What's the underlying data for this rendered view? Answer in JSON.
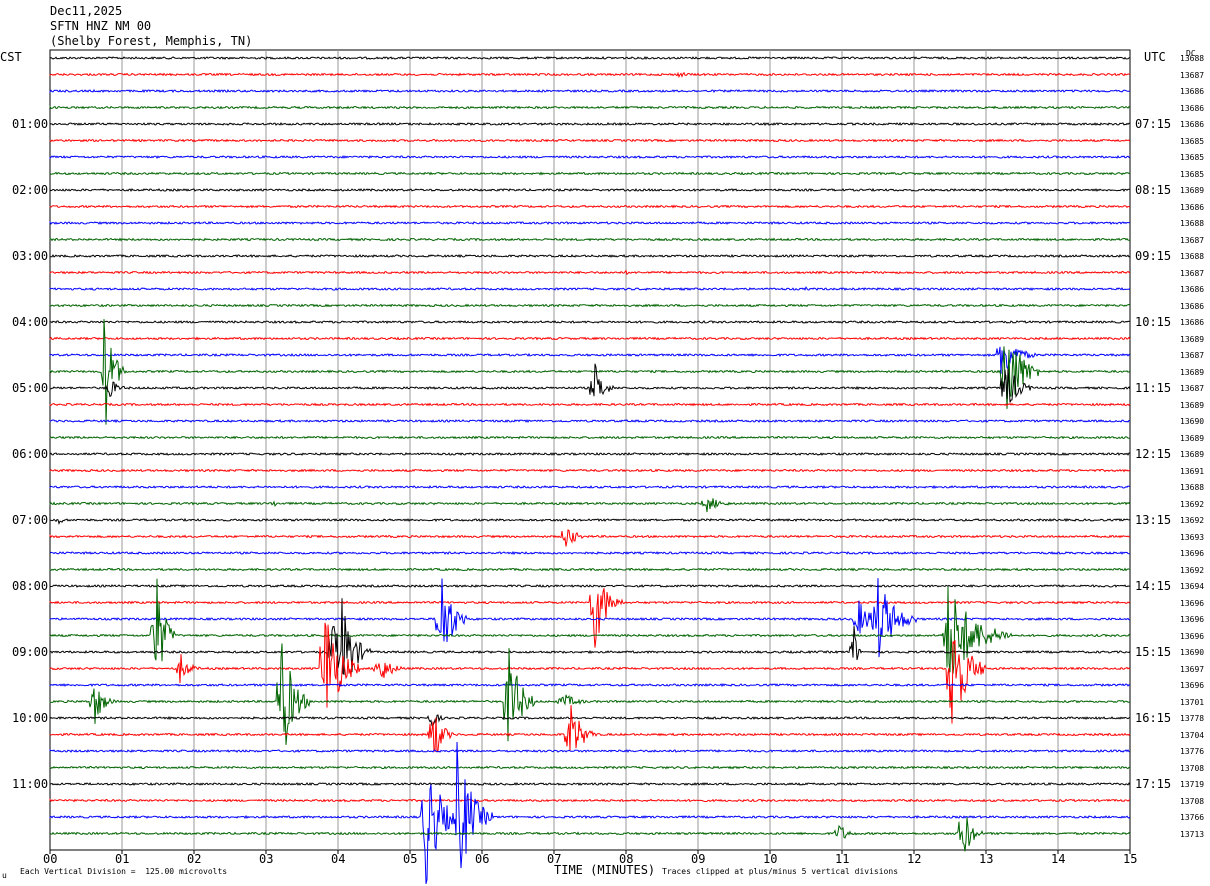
{
  "header": {
    "date": "Dec11,2025",
    "station": "SFTN HNZ NM 00",
    "location": "(Shelby Forest, Memphis, TN)"
  },
  "left_axis_title": "CST",
  "right_axis_title": "UTC",
  "dc_label": "DC",
  "left_times": [
    "01:00",
    "02:00",
    "03:00",
    "04:00",
    "05:00",
    "06:00",
    "07:00",
    "08:00",
    "09:00",
    "10:00",
    "11:00"
  ],
  "right_times": [
    "07:15",
    "08:15",
    "09:15",
    "10:15",
    "11:15",
    "12:15",
    "13:15",
    "14:15",
    "15:15",
    "16:15",
    "17:15"
  ],
  "dc_values": [
    "13688",
    "13687",
    "13686",
    "13686",
    "13686",
    "13685",
    "13685",
    "13685",
    "13689",
    "13686",
    "13688",
    "13687",
    "13688",
    "13687",
    "13686",
    "13686",
    "13686",
    "13689",
    "13687",
    "13689",
    "13687",
    "13689",
    "13690",
    "13689",
    "13689",
    "13691",
    "13688",
    "13692",
    "13692",
    "13693",
    "13696",
    "13692",
    "13694",
    "13696",
    "13696",
    "13696",
    "13690",
    "13697",
    "13696",
    "13701",
    "13778",
    "13704",
    "13776",
    "13708",
    "13719",
    "13708",
    "13766",
    "13713"
  ],
  "x_ticks": [
    "00",
    "01",
    "02",
    "03",
    "04",
    "05",
    "06",
    "07",
    "08",
    "09",
    "10",
    "11",
    "12",
    "13",
    "14",
    "15"
  ],
  "x_axis_title": "TIME (MINUTES)",
  "footer_left": "Each Vertical Division =  125.00 microvolts",
  "footer_right": "Traces clipped at plus/minus 5 vertical divisions",
  "footer_logo": "u",
  "trace_colors": [
    "#000000",
    "#ff0000",
    "#0000ff",
    "#006400"
  ],
  "events": [
    {
      "line": 1,
      "minute": 8.7,
      "amp": 3,
      "dur": 0.6
    },
    {
      "line": 13,
      "minute": 8.0,
      "amp": 2,
      "dur": 0.3
    },
    {
      "line": 14,
      "minute": 10.5,
      "amp": 2,
      "dur": 0.2
    },
    {
      "line": 19,
      "minute": 0.75,
      "amp": 70,
      "dur": 0.3
    },
    {
      "line": 20,
      "minute": 0.8,
      "amp": 14,
      "dur": 0.3
    },
    {
      "line": 18,
      "minute": 13.2,
      "amp": 30,
      "dur": 0.5
    },
    {
      "line": 19,
      "minute": 13.25,
      "amp": 70,
      "dur": 0.5
    },
    {
      "line": 20,
      "minute": 13.25,
      "amp": 35,
      "dur": 0.4
    },
    {
      "line": 20,
      "minute": 7.55,
      "amp": 30,
      "dur": 0.3
    },
    {
      "line": 27,
      "minute": 9.1,
      "amp": 10,
      "dur": 0.5
    },
    {
      "line": 27,
      "minute": 3.1,
      "amp": 6,
      "dur": 0.1
    },
    {
      "line": 28,
      "minute": 0.1,
      "amp": 6,
      "dur": 0.2
    },
    {
      "line": 29,
      "minute": 7.15,
      "amp": 18,
      "dur": 0.3
    },
    {
      "line": 33,
      "minute": 7.55,
      "amp": 55,
      "dur": 0.4
    },
    {
      "line": 34,
      "minute": 5.4,
      "amp": 70,
      "dur": 0.4
    },
    {
      "line": 34,
      "minute": 11.45,
      "amp": 55,
      "dur": 0.6
    },
    {
      "line": 34,
      "minute": 11.2,
      "amp": 25,
      "dur": 0.4
    },
    {
      "line": 35,
      "minute": 1.45,
      "amp": 80,
      "dur": 0.3
    },
    {
      "line": 35,
      "minute": 12.45,
      "amp": 60,
      "dur": 0.9
    },
    {
      "line": 36,
      "minute": 4.05,
      "amp": 60,
      "dur": 0.4
    },
    {
      "line": 36,
      "minute": 3.9,
      "amp": 45,
      "dur": 0.3
    },
    {
      "line": 36,
      "minute": 11.15,
      "amp": 50,
      "dur": 0.1
    },
    {
      "line": 37,
      "minute": 1.8,
      "amp": 18,
      "dur": 0.3
    },
    {
      "line": 37,
      "minute": 3.8,
      "amp": 80,
      "dur": 0.5
    },
    {
      "line": 37,
      "minute": 4.55,
      "amp": 20,
      "dur": 0.4
    },
    {
      "line": 37,
      "minute": 12.5,
      "amp": 80,
      "dur": 0.5
    },
    {
      "line": 39,
      "minute": 0.6,
      "amp": 30,
      "dur": 0.3
    },
    {
      "line": 39,
      "minute": 3.2,
      "amp": 80,
      "dur": 0.4
    },
    {
      "line": 39,
      "minute": 6.35,
      "amp": 70,
      "dur": 0.4
    },
    {
      "line": 39,
      "minute": 7.1,
      "amp": 10,
      "dur": 0.5
    },
    {
      "line": 40,
      "minute": 5.3,
      "amp": 14,
      "dur": 0.2
    },
    {
      "line": 41,
      "minute": 5.3,
      "amp": 40,
      "dur": 0.3
    },
    {
      "line": 41,
      "minute": 7.2,
      "amp": 40,
      "dur": 0.4
    },
    {
      "line": 46,
      "minute": 5.2,
      "amp": 80,
      "dur": 0.5
    },
    {
      "line": 46,
      "minute": 5.65,
      "amp": 80,
      "dur": 0.5
    },
    {
      "line": 47,
      "minute": 10.95,
      "amp": 12,
      "dur": 0.3
    },
    {
      "line": 47,
      "minute": 12.65,
      "amp": 40,
      "dur": 0.3
    }
  ]
}
